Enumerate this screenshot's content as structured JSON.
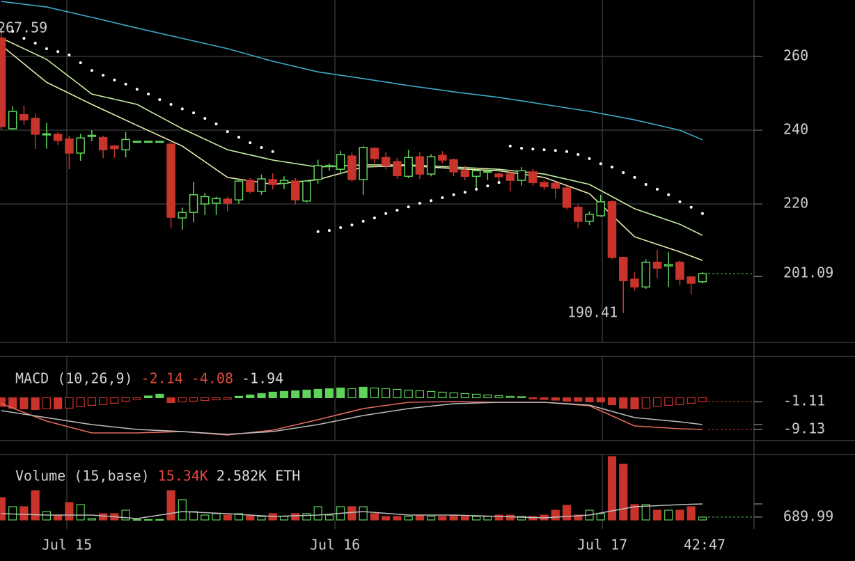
{
  "chart_data": {
    "type": "candlestick",
    "xlim": [
      -0.12,
      66.56
    ],
    "xticks": [
      {
        "value": 5.79,
        "label": "Jul 15"
      },
      {
        "value": 29.5,
        "label": "Jul 16"
      },
      {
        "value": 53.14,
        "label": "Jul 17"
      }
    ],
    "countdown": "42:47",
    "ylim": [
      182.45,
      275.3
    ],
    "yticks": [
      220,
      240,
      260
    ],
    "up_color": "#5fd35a",
    "down_color": "#c8342b",
    "open": [
      265,
      240.4,
      244.2,
      243.2,
      238.8,
      238.9,
      237.6,
      233.8,
      238.3,
      238,
      235.7,
      234.7,
      237,
      237,
      237,
      236.2,
      216.2,
      217.7,
      220,
      220.2,
      221.3,
      221.1,
      226.4,
      223.4,
      226.6,
      225.6,
      226.2,
      220.8,
      226.6,
      230.2,
      229.4,
      233,
      226.6,
      235.1,
      232.6,
      231.5,
      227.5,
      232.8,
      228.1,
      233.2,
      232,
      229,
      227.5,
      228.8,
      228.1,
      228.1,
      226.4,
      228.7,
      225.8,
      225.6,
      224.3,
      219.1,
      215.3,
      216.8,
      220.6,
      205.5,
      199.6,
      197.5,
      204.2,
      203.2,
      204.2,
      200.2,
      198.9
    ],
    "high": [
      267.59,
      246.5,
      246.7,
      244.5,
      242,
      239.5,
      238.5,
      239,
      240,
      238.5,
      236,
      239.5,
      237,
      237,
      237,
      236.8,
      219,
      226,
      223,
      222,
      222,
      226.5,
      227,
      228,
      228.3,
      227.5,
      227,
      226.5,
      232,
      231,
      234.4,
      234,
      235.7,
      235.3,
      234,
      232.5,
      234.7,
      234,
      233.5,
      234.3,
      232.3,
      230.4,
      229.4,
      229.4,
      228.5,
      229,
      230,
      229.5,
      226.4,
      226,
      225,
      220,
      218,
      222.5,
      221,
      205.7,
      201.5,
      205,
      207.5,
      207,
      204.7,
      200.5,
      201.5
    ],
    "low": [
      240,
      240,
      241.5,
      234.9,
      235,
      236,
      229.4,
      231.7,
      237,
      232.4,
      232.5,
      232.6,
      237,
      237,
      237,
      213.5,
      213,
      215,
      217,
      217,
      218,
      220,
      222.8,
      222.5,
      224,
      224,
      219.8,
      220.4,
      225.5,
      229,
      228,
      226,
      222.5,
      231,
      229.4,
      226.8,
      227,
      226.8,
      227.5,
      231,
      227.5,
      226.4,
      223.8,
      226.5,
      226,
      223.4,
      225,
      225,
      223.8,
      221.5,
      218.5,
      213.4,
      214.3,
      216.5,
      205,
      190.41,
      196.5,
      197,
      200,
      197.5,
      198,
      195.5,
      198.5
    ],
    "close": [
      241,
      245.1,
      242.8,
      238.9,
      239,
      237.2,
      233.8,
      237.9,
      238.6,
      234.7,
      235,
      237.5,
      237,
      237,
      237,
      216.4,
      217.7,
      222.5,
      222,
      221.5,
      220.2,
      226.2,
      223.4,
      226.8,
      225.3,
      226.4,
      221.1,
      226.2,
      230.4,
      230.4,
      233.4,
      226.6,
      235.3,
      232.3,
      230.4,
      227.7,
      232.6,
      228.1,
      232.8,
      231.9,
      228.7,
      227.5,
      229,
      228.9,
      227.4,
      226.4,
      229,
      225.8,
      224.7,
      224.3,
      219.1,
      215.3,
      217.2,
      220.6,
      205.5,
      199.2,
      197.5,
      204.2,
      202.6,
      203.6,
      199.6,
      198.5,
      201.09
    ],
    "lines": [
      {
        "color": "#3fa9c9",
        "x": [
          0,
          4,
          8,
          12,
          16,
          20,
          24,
          28,
          32,
          36,
          40,
          44,
          48,
          52,
          56,
          60,
          62
        ],
        "values": [
          274.9,
          273.4,
          270.6,
          267.7,
          264.9,
          262.1,
          258.7,
          255.8,
          254,
          252.1,
          250.4,
          248.9,
          247,
          245.1,
          242.8,
          240,
          237.4
        ]
      },
      {
        "color": "#c6f0a4",
        "x": [
          0,
          4,
          8,
          12,
          16,
          20,
          24,
          28,
          32,
          36,
          40,
          44,
          48,
          52,
          56,
          60,
          62
        ],
        "values": [
          265,
          259.2,
          249.8,
          247,
          240.4,
          234.7,
          231.9,
          230,
          230.6,
          230.6,
          230,
          229.4,
          228.1,
          225.3,
          218.7,
          214.5,
          211.5
        ]
      },
      {
        "color": "#ecebb0",
        "x": [
          0,
          4,
          8,
          12,
          16,
          20,
          24,
          28,
          32,
          36,
          40,
          44,
          48,
          52,
          56,
          60,
          62
        ],
        "values": [
          263,
          253,
          247,
          241.3,
          235.7,
          227.2,
          225.3,
          226.6,
          230,
          230.4,
          229.6,
          229,
          227.2,
          222.8,
          211.1,
          207,
          204.7
        ]
      }
    ],
    "sar": {
      "color": "#ffffff",
      "values": [
        null,
        266.8,
        264.9,
        263.6,
        262.1,
        261.3,
        260.4,
        258.3,
        256.2,
        254.9,
        253.6,
        252.5,
        251.1,
        249.8,
        248.3,
        247,
        245.8,
        244.7,
        243.2,
        241.7,
        239.6,
        238.1,
        236.6,
        235.3,
        234.2,
        null,
        null,
        null,
        212.5,
        212.8,
        213.6,
        214.3,
        215.3,
        216.2,
        217.4,
        218.3,
        219.2,
        220.2,
        220.9,
        221.7,
        222.5,
        223.2,
        224,
        224.9,
        225.8,
        235.7,
        235.1,
        234.9,
        234.7,
        234.5,
        234.2,
        233.4,
        232.3,
        230.9,
        230,
        228.5,
        227.2,
        225.3,
        224,
        222.5,
        220.6,
        219.1,
        217.4
      ]
    },
    "macd": {
      "title": "MACD (10,26,9)",
      "readouts": [
        {
          "value": -2.14,
          "color": "#e0483c"
        },
        {
          "value": -4.08,
          "color": "#e0483c"
        },
        {
          "value": -1.94,
          "color": "#dddddd"
        }
      ],
      "ylim": [
        -12.33,
        11.7
      ],
      "histogram": [
        -2.5,
        -3,
        -3.2,
        -3.4,
        -3.2,
        -3.2,
        -3,
        -2.6,
        -2.2,
        -2,
        -1.6,
        -1,
        -0.5,
        0.5,
        1,
        -1.4,
        -1.2,
        -1,
        -0.8,
        -0.6,
        -0.4,
        0.4,
        0.8,
        1.2,
        1.6,
        1.8,
        2,
        2.2,
        2.4,
        2.6,
        2.8,
        2.6,
        3,
        2.8,
        2.6,
        2.4,
        2.2,
        2,
        1.8,
        1.6,
        1.4,
        1.2,
        1,
        0.8,
        0.6,
        0.4,
        0.3,
        -0.3,
        -0.5,
        -0.7,
        -1,
        -1,
        -1.2,
        -1.2,
        -2,
        -3,
        -3.2,
        -3,
        -2.5,
        -2.2,
        -2,
        -1.6,
        -1.11
      ],
      "lines": [
        {
          "color": "#e46a5e",
          "x": [
            0,
            4,
            8,
            12,
            16,
            20,
            24,
            28,
            32,
            36,
            40,
            44,
            48,
            52,
            56,
            60,
            62
          ],
          "values": [
            -1.71,
            -6.72,
            -10.13,
            -10.13,
            -9.73,
            -10.73,
            -9.33,
            -6.32,
            -3.11,
            -1.31,
            -1.11,
            -1.31,
            -1.31,
            -2.31,
            -8.12,
            -8.93,
            -9.13
          ]
        },
        {
          "color": "#bbbbbb",
          "x": [
            0,
            4,
            8,
            12,
            16,
            20,
            24,
            28,
            32,
            36,
            40,
            44,
            48,
            52,
            56,
            60,
            62
          ],
          "values": [
            -3.72,
            -5.72,
            -7.72,
            -9.13,
            -9.73,
            -10.53,
            -9.73,
            -7.72,
            -5.12,
            -3.11,
            -1.71,
            -1.31,
            -1.31,
            -2.11,
            -5.72,
            -6.92,
            -7.72
          ]
        }
      ]
    },
    "volume": {
      "title": "Volume (15,base)",
      "readouts": [
        {
          "text": "15.34K",
          "color": "#e0483c"
        },
        {
          "text": "2.582K ETH",
          "color": "#dddddd"
        }
      ],
      "ylim": [
        0,
        15850
      ],
      "values": [
        5394,
        3203,
        3203,
        7080,
        2023,
        1180,
        4214,
        3709,
        337,
        1517,
        1517,
        2360,
        100,
        100,
        100,
        7080,
        4888,
        2023,
        1180,
        1517,
        1180,
        1517,
        1180,
        843,
        1517,
        843,
        1517,
        1517,
        3203,
        1180,
        3203,
        3203,
        3203,
        1517,
        843,
        843,
        843,
        1180,
        843,
        843,
        1180,
        843,
        843,
        843,
        1180,
        1180,
        843,
        843,
        1180,
        2360,
        3540,
        1180,
        2360,
        1517,
        15340,
        13486,
        3709,
        3709,
        2360,
        2360,
        2360,
        3203,
        689.99
      ],
      "ma": {
        "color": "#bbbbbb",
        "x": [
          0,
          4,
          8,
          12,
          16,
          20,
          24,
          28,
          32,
          36,
          40,
          44,
          48,
          52,
          56,
          60,
          62
        ],
        "values": [
          1517,
          1180,
          1180,
          337,
          2023,
          1517,
          843,
          1180,
          2023,
          1180,
          1180,
          843,
          506,
          1180,
          3203,
          3709,
          3878
        ]
      }
    }
  }
}
